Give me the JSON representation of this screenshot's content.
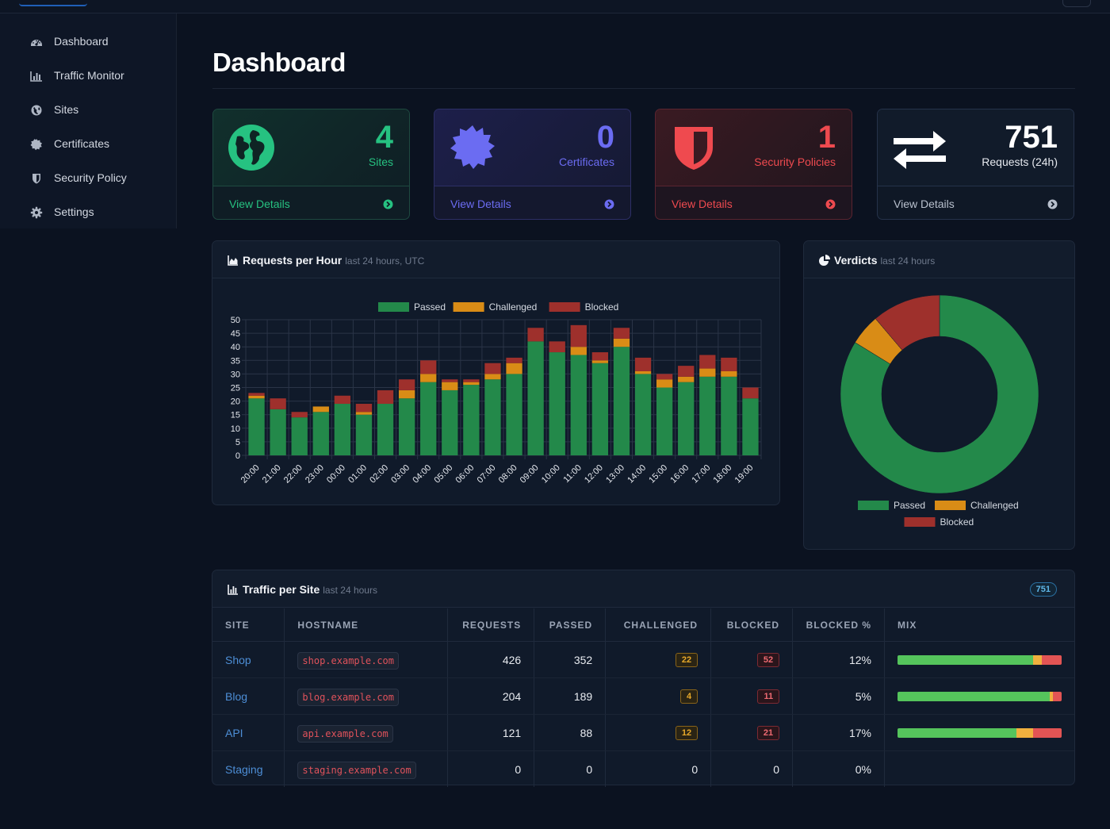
{
  "nav": [
    {
      "label": "Dashboard",
      "icon": "dashboard-icon"
    },
    {
      "label": "Traffic Monitor",
      "icon": "chart-bar-icon"
    },
    {
      "label": "Sites",
      "icon": "globe-icon"
    },
    {
      "label": "Certificates",
      "icon": "certificate-icon"
    },
    {
      "label": "Security Policy",
      "icon": "shield-icon"
    },
    {
      "label": "Settings",
      "icon": "gear-icon"
    }
  ],
  "page_title": "Dashboard",
  "stats": [
    {
      "value": "4",
      "caption": "Sites",
      "details": "View Details",
      "icon": "globe-icon",
      "accent": "#26c281"
    },
    {
      "value": "0",
      "caption": "Certificates",
      "details": "View Details",
      "icon": "certificate-icon",
      "accent": "#6b6cf2"
    },
    {
      "value": "1",
      "caption": "Security Policies",
      "details": "View Details",
      "icon": "shield-icon",
      "accent": "#ef4a4f"
    },
    {
      "value": "751",
      "caption": "Requests (24h)",
      "details": "View Details",
      "icon": "exchange-icon",
      "accent": "#ffffff"
    }
  ],
  "requests_panel": {
    "title": "Requests per Hour",
    "subtitle": "last 24 hours, UTC"
  },
  "verdicts_panel": {
    "title": "Verdicts",
    "subtitle": "last 24 hours"
  },
  "traffic_panel": {
    "title": "Traffic per Site",
    "subtitle": "last 24 hours",
    "total": "751"
  },
  "colors": {
    "passed": "#23894a",
    "challenged": "#d98c16",
    "blocked": "#9e302c"
  },
  "chart_data": [
    {
      "type": "bar",
      "stacked": true,
      "categories": [
        "20:00",
        "21:00",
        "22:00",
        "23:00",
        "00:00",
        "01:00",
        "02:00",
        "03:00",
        "04:00",
        "05:00",
        "06:00",
        "07:00",
        "08:00",
        "09:00",
        "10:00",
        "11:00",
        "12:00",
        "13:00",
        "14:00",
        "15:00",
        "16:00",
        "17:00",
        "18:00",
        "19:00"
      ],
      "series": [
        {
          "name": "Passed",
          "values": [
            21,
            17,
            14,
            16,
            19,
            15,
            19,
            21,
            27,
            24,
            26,
            28,
            30,
            42,
            38,
            37,
            34,
            40,
            30,
            25,
            27,
            29,
            29,
            21
          ]
        },
        {
          "name": "Challenged",
          "values": [
            1,
            0,
            0,
            2,
            0,
            1,
            0,
            3,
            3,
            3,
            1,
            2,
            4,
            0,
            0,
            3,
            1,
            3,
            1,
            3,
            2,
            3,
            2,
            0
          ]
        },
        {
          "name": "Blocked",
          "values": [
            1,
            4,
            2,
            0,
            3,
            3,
            5,
            4,
            5,
            1,
            1,
            4,
            2,
            5,
            4,
            8,
            3,
            4,
            5,
            2,
            4,
            5,
            5,
            4
          ]
        }
      ],
      "ylim": [
        0,
        50
      ],
      "yticks": [
        0,
        5,
        10,
        15,
        20,
        25,
        30,
        35,
        40,
        45,
        50
      ],
      "legend": "top"
    },
    {
      "type": "pie",
      "donut": true,
      "categories": [
        "Passed",
        "Challenged",
        "Blocked"
      ],
      "values": [
        629,
        38,
        84
      ],
      "legend": "bottom"
    }
  ],
  "table": {
    "headers": [
      "SITE",
      "HOSTNAME",
      "REQUESTS",
      "PASSED",
      "CHALLENGED",
      "BLOCKED",
      "BLOCKED %",
      "MIX"
    ],
    "rows": [
      {
        "site": "Shop",
        "host": "shop.example.com",
        "requests": "426",
        "passed": "352",
        "challenged": "22",
        "blocked": "52",
        "pct": "12%",
        "mix": [
          0.826,
          0.052,
          0.122
        ]
      },
      {
        "site": "Blog",
        "host": "blog.example.com",
        "requests": "204",
        "passed": "189",
        "challenged": "4",
        "blocked": "11",
        "pct": "5%",
        "mix": [
          0.926,
          0.02,
          0.054
        ]
      },
      {
        "site": "API",
        "host": "api.example.com",
        "requests": "121",
        "passed": "88",
        "challenged": "12",
        "blocked": "21",
        "pct": "17%",
        "mix": [
          0.727,
          0.099,
          0.174
        ]
      },
      {
        "site": "Staging",
        "host": "staging.example.com",
        "requests": "0",
        "passed": "0",
        "challenged": "0",
        "blocked": "0",
        "pct": "0%",
        "mix": null
      }
    ]
  }
}
